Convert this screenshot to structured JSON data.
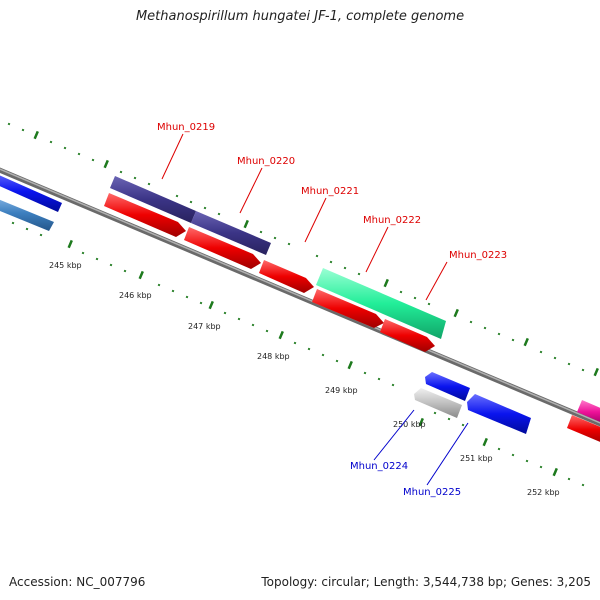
{
  "title": "Methanospirillum hungatei JF-1, complete genome",
  "footer": {
    "accession": "Accession: NC_007796",
    "summary": "Topology: circular; Length: 3,544,738 bp; Genes: 3,205"
  },
  "colors": {
    "backbone": "#8a8a8a",
    "tick_green": "#1e7a1e",
    "label_red": "#dd0000",
    "label_blue": "#0000cc",
    "navy": "#3b3486",
    "red": "#ee0000",
    "teal": "#22ee99",
    "blue": "#0a14ee",
    "steel": "#3d7fbf",
    "gray": "#c0c0c0",
    "magenta": "#ee1199"
  },
  "ruler": {
    "labels": [
      "245 kbp",
      "246 kbp",
      "247 kbp",
      "248 kbp",
      "249 kbp",
      "250 kbp",
      "251 kbp",
      "252 kbp"
    ]
  },
  "genes": [
    {
      "id": "Mhun_0219",
      "label": "Mhun_0219",
      "strand": "+",
      "color": "navy",
      "labeled": true
    },
    {
      "id": "Mhun_0220",
      "label": "Mhun_0220",
      "strand": "+",
      "color": "navy",
      "labeled": true
    },
    {
      "id": "Mhun_0221",
      "label": "Mhun_0221",
      "strand": "+",
      "color": "red",
      "labeled": true
    },
    {
      "id": "Mhun_0222",
      "label": "Mhun_0222",
      "strand": "+",
      "color": "teal",
      "labeled": true
    },
    {
      "id": "Mhun_0223",
      "label": "Mhun_0223",
      "strand": "+",
      "color": "red",
      "labeled": true
    },
    {
      "id": "Mhun_0224",
      "label": "Mhun_0224",
      "strand": "-",
      "color": "gray",
      "labeled": true
    },
    {
      "id": "Mhun_0225",
      "label": "Mhun_0225",
      "strand": "-",
      "color": "blue",
      "labeled": true
    }
  ]
}
